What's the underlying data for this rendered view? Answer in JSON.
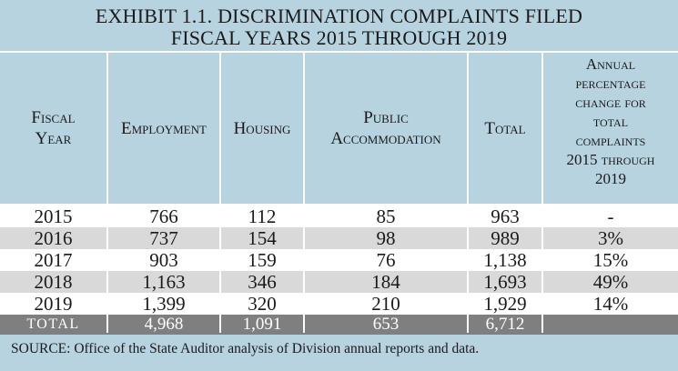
{
  "exhibit": {
    "title_line1": "EXHIBIT 1.1. DISCRIMINATION COMPLAINTS FILED",
    "title_line2": "FISCAL YEARS 2015 THROUGH 2019"
  },
  "table": {
    "headers": [
      [
        "Fiscal",
        "Year"
      ],
      [
        "Employment"
      ],
      [
        "Housing"
      ],
      [
        "Public",
        "Accommodation"
      ],
      [
        "Total"
      ],
      [
        "Annual",
        "percentage",
        "change for",
        "total",
        "complaints",
        "2015 through",
        "2019"
      ]
    ],
    "rows": [
      [
        "2015",
        "766",
        "112",
        "85",
        "963",
        "-"
      ],
      [
        "2016",
        "737",
        "154",
        "98",
        "989",
        "3%"
      ],
      [
        "2017",
        "903",
        "159",
        "76",
        "1,138",
        "15%"
      ],
      [
        "2018",
        "1,163",
        "346",
        "184",
        "1,693",
        "49%"
      ],
      [
        "2019",
        "1,399",
        "320",
        "210",
        "1,929",
        "14%"
      ]
    ],
    "total_row": [
      "TOTAL",
      "4,968",
      "1,091",
      "653",
      "6,712",
      ""
    ]
  },
  "source": "SOURCE: Office of the State Auditor analysis of Division annual reports and data.",
  "colors": {
    "header_band": "#b7d3df",
    "alt_row": "#d9d9d9",
    "total_row": "#7f7f7f"
  }
}
